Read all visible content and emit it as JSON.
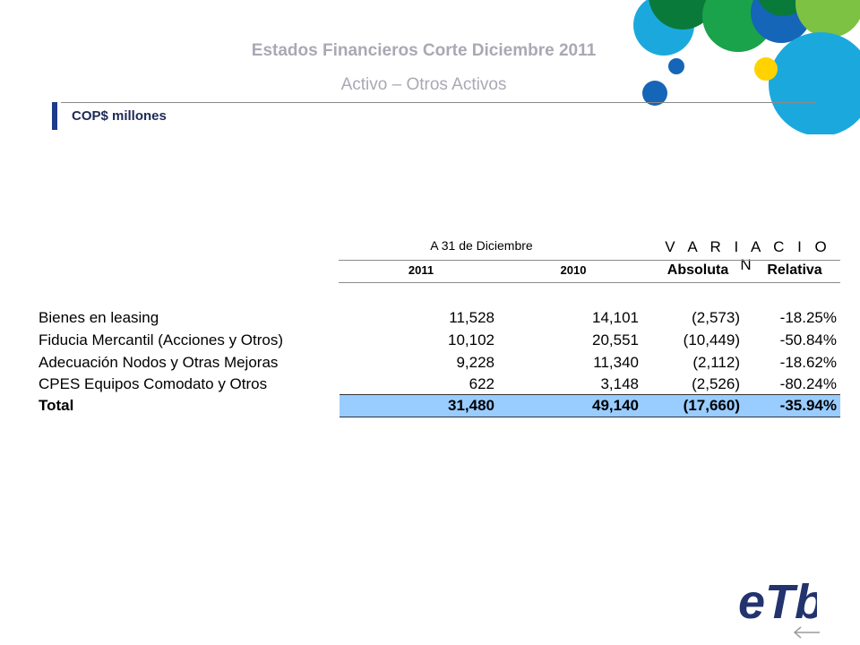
{
  "header": {
    "title": "Estados Financieros Corte Diciembre 2011",
    "subtitle": "Activo –  Otros Activos",
    "unit": "COP$ millones"
  },
  "table": {
    "period_header": "A 31 de Diciembre",
    "variation_header": "V A R I A C I O N",
    "columns": [
      "2011",
      "2010",
      "Absoluta",
      "Relativa"
    ],
    "rows": [
      {
        "label": "Bienes en leasing",
        "y2011": "11,528",
        "y2010": "14,101",
        "absoluta": "(2,573)",
        "relativa": "-18.25%"
      },
      {
        "label": "Fiducia Mercantil  (Acciones y Otros)",
        "y2011": "10,102",
        "y2010": "20,551",
        "absoluta": "(10,449)",
        "relativa": "-50.84%"
      },
      {
        "label": "Adecuación Nodos y Otras Mejoras",
        "y2011": "9,228",
        "y2010": "11,340",
        "absoluta": "(2,112)",
        "relativa": "-18.62%"
      },
      {
        "label": "CPES Equipos Comodato y Otros",
        "y2011": "622",
        "y2010": "3,148",
        "absoluta": "(2,526)",
        "relativa": "-80.24%"
      }
    ],
    "total": {
      "label": "Total",
      "y2011": "31,480",
      "y2010": "49,140",
      "absoluta": "(17,660)",
      "relativa": "-35.94%"
    }
  },
  "branding": {
    "logo_text": "eTb",
    "colors": {
      "navy": "#1e3a8a",
      "total_fill": "#99ccff",
      "title_gray": "#a9a9b4",
      "circle_green_dark": "#0a7a3a",
      "circle_green": "#1aa34a",
      "circle_cyan": "#1ba9dd",
      "circle_blue": "#1565b8",
      "circle_lime": "#7dc242",
      "circle_yellow": "#ffd200",
      "logo": "#23336e"
    }
  }
}
